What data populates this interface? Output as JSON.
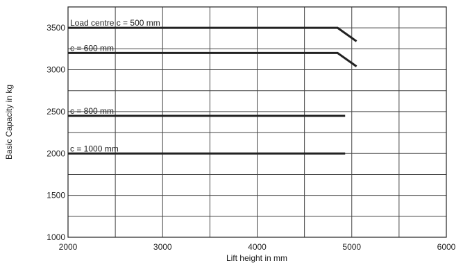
{
  "chart_data": {
    "type": "line",
    "x_label": "Lift height in mm",
    "y_label": "Basic Capacity in kg",
    "xlim": [
      2000,
      6000
    ],
    "ylim": [
      1000,
      3750
    ],
    "xticks": [
      2000,
      3000,
      4000,
      5000,
      6000
    ],
    "yticks": [
      1000,
      1500,
      2000,
      2500,
      3000,
      3500
    ],
    "x_minor_grid": [
      2500,
      3500,
      4500,
      5500
    ],
    "y_minor_grid": [
      1250,
      1750,
      2250,
      2750,
      3250
    ],
    "grid": true,
    "series": [
      {
        "name": "Load centre c = 500 mm",
        "color": "#222222",
        "x": [
          2000,
          4850,
          5050
        ],
        "values": [
          3500,
          3500,
          3340
        ]
      },
      {
        "name": "c = 600 mm",
        "color": "#222222",
        "x": [
          2000,
          4850,
          5050
        ],
        "values": [
          3200,
          3200,
          3040
        ]
      },
      {
        "name": "c = 800 mm",
        "color": "#222222",
        "x": [
          2000,
          4930
        ],
        "values": [
          2450,
          2450
        ]
      },
      {
        "name": "c = 1000 mm",
        "color": "#222222",
        "x": [
          2000,
          4930
        ],
        "values": [
          2000,
          2000
        ]
      }
    ]
  }
}
